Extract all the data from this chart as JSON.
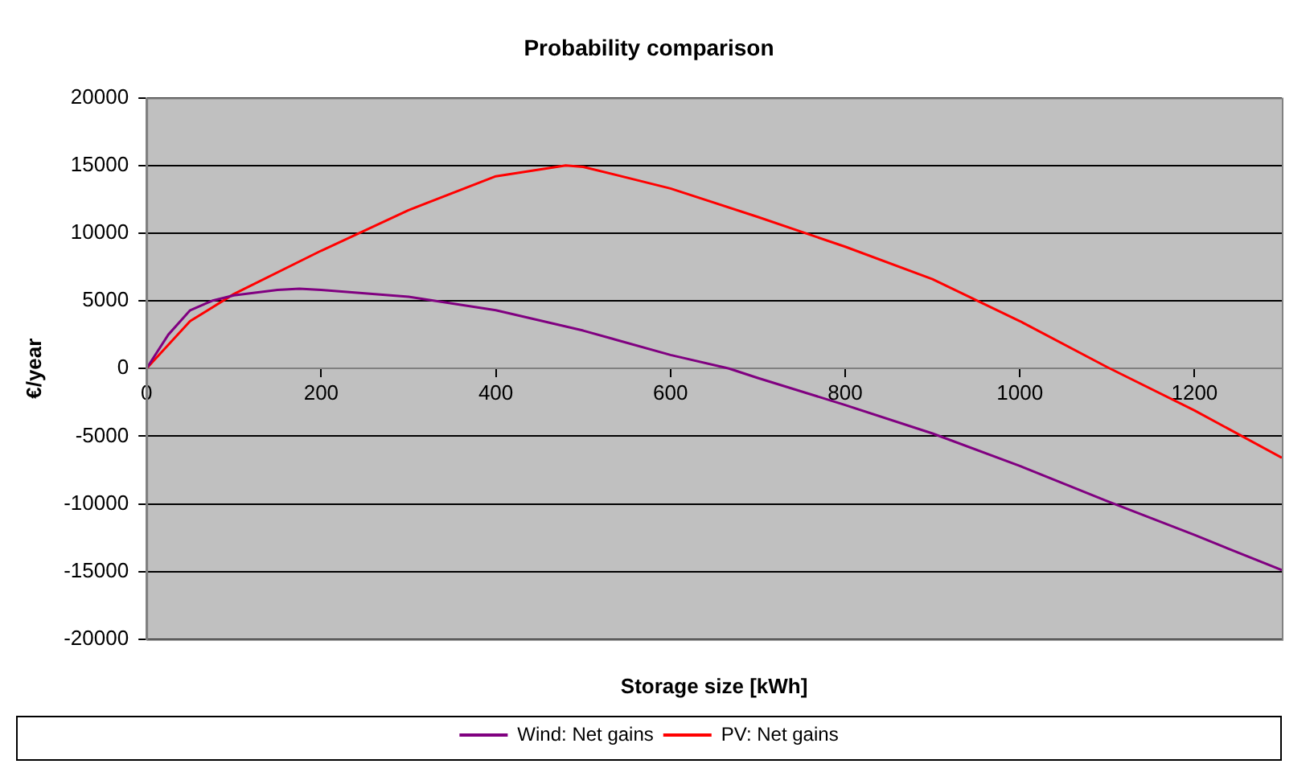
{
  "chart_data": {
    "type": "line",
    "title": "Probability comparison",
    "xlabel": "Storage size [kWh]",
    "ylabel": "€/year",
    "xlim": [
      0,
      1300
    ],
    "xticks": [
      0,
      200,
      400,
      600,
      800,
      1000,
      1200
    ],
    "ylim": [
      -20000,
      20000
    ],
    "yticks": [
      -20000,
      -15000,
      -10000,
      -5000,
      0,
      5000,
      10000,
      15000,
      20000
    ],
    "grid": "y",
    "legend": "bottom",
    "marker": "none",
    "line_style": "solid",
    "series": [
      {
        "name": "Wind: Net gains",
        "color": "#800080",
        "x": [
          0,
          25,
          50,
          75,
          100,
          150,
          175,
          200,
          300,
          400,
          500,
          600,
          667,
          700,
          800,
          900,
          1000,
          1100,
          1200,
          1300
        ],
        "values": [
          0,
          2500,
          4300,
          5000,
          5400,
          5800,
          5900,
          5800,
          5300,
          4300,
          2800,
          1000,
          0,
          -700,
          -2700,
          -4800,
          -7200,
          -9800,
          -12300,
          -14900
        ]
      },
      {
        "name": "PV: Net gains",
        "color": "#ff0000",
        "x": [
          0,
          50,
          100,
          200,
          300,
          400,
          480,
          500,
          600,
          700,
          800,
          900,
          1000,
          1100,
          1200,
          1300
        ],
        "values": [
          0,
          3500,
          5500,
          8700,
          11700,
          14200,
          15000,
          14900,
          13300,
          11200,
          9000,
          6600,
          3500,
          100,
          -3100,
          -6600
        ]
      }
    ]
  }
}
